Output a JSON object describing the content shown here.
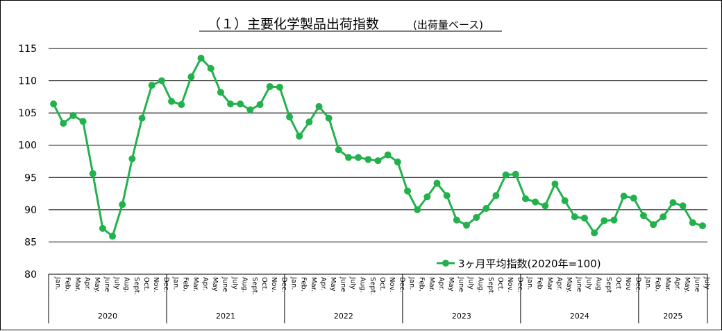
{
  "chart_data": {
    "type": "line",
    "title": "（１）主要化学製品出荷指数",
    "subtitle": "(出荷量ベース)",
    "ylim": [
      80,
      115
    ],
    "yticks": [
      80,
      85,
      90,
      95,
      100,
      105,
      110,
      115
    ],
    "grid": true,
    "legend_position": "bottom-right",
    "colors": {
      "series": "#22b14c",
      "grid": "#000000",
      "axis": "#000000"
    },
    "months": [
      "Jan.",
      "Feb.",
      "Mar.",
      "Apr.",
      "May.",
      "June",
      "July",
      "Aug.",
      "Sept.",
      "Oct.",
      "Nov.",
      "Dec.",
      "Jan.",
      "Feb.",
      "Mar.",
      "Apr.",
      "May",
      "June",
      "July",
      "Aug.",
      "Sept.",
      "Oct.",
      "Nov.",
      "Dec.",
      "Jan.",
      "Feb.",
      "Mar.",
      "Apr.",
      "May",
      "June",
      "July",
      "Aug.",
      "Sept.",
      "Oct.",
      "Nov.",
      "Dec.",
      "Jan.",
      "Feb.",
      "Mar.",
      "Apr.",
      "May",
      "June",
      "July",
      "Aug.",
      "Sept.",
      "Oct.",
      "Nov.",
      "Dec.",
      "Jan.",
      "Feb",
      "Mar",
      "Apr.",
      "May.",
      "June",
      "July",
      "Aug",
      "Sept",
      "Oct",
      "Nov",
      "Dec.",
      "Jan.",
      "Feb.",
      "Mar.",
      "Apr.",
      "May.",
      "June",
      "July"
    ],
    "years": [
      {
        "label": "2020",
        "months": 12
      },
      {
        "label": "2021",
        "months": 12
      },
      {
        "label": "2022",
        "months": 12
      },
      {
        "label": "2023",
        "months": 12
      },
      {
        "label": "2024",
        "months": 12
      },
      {
        "label": "2025",
        "months": 7
      }
    ],
    "series": [
      {
        "name": "3ヶ月平均指数(2020年=100)",
        "values": [
          106.4,
          103.4,
          104.6,
          103.7,
          95.6,
          87.1,
          85.9,
          90.8,
          97.9,
          104.2,
          109.3,
          110.0,
          106.8,
          106.3,
          110.6,
          113.5,
          111.9,
          108.2,
          106.4,
          106.4,
          105.5,
          106.3,
          109.1,
          109.0,
          104.4,
          101.4,
          103.6,
          106.0,
          104.2,
          99.3,
          98.1,
          98.1,
          97.8,
          97.6,
          98.5,
          97.4,
          92.9,
          90.0,
          92.0,
          94.1,
          92.2,
          88.4,
          87.6,
          88.8,
          90.2,
          92.2,
          95.4,
          95.5,
          91.7,
          91.2,
          90.6,
          94.0,
          91.4,
          88.9,
          88.7,
          86.4,
          88.3,
          88.4,
          92.1,
          91.8,
          89.1,
          87.7,
          88.9,
          91.1,
          90.6,
          88.0,
          87.5
        ]
      }
    ]
  }
}
